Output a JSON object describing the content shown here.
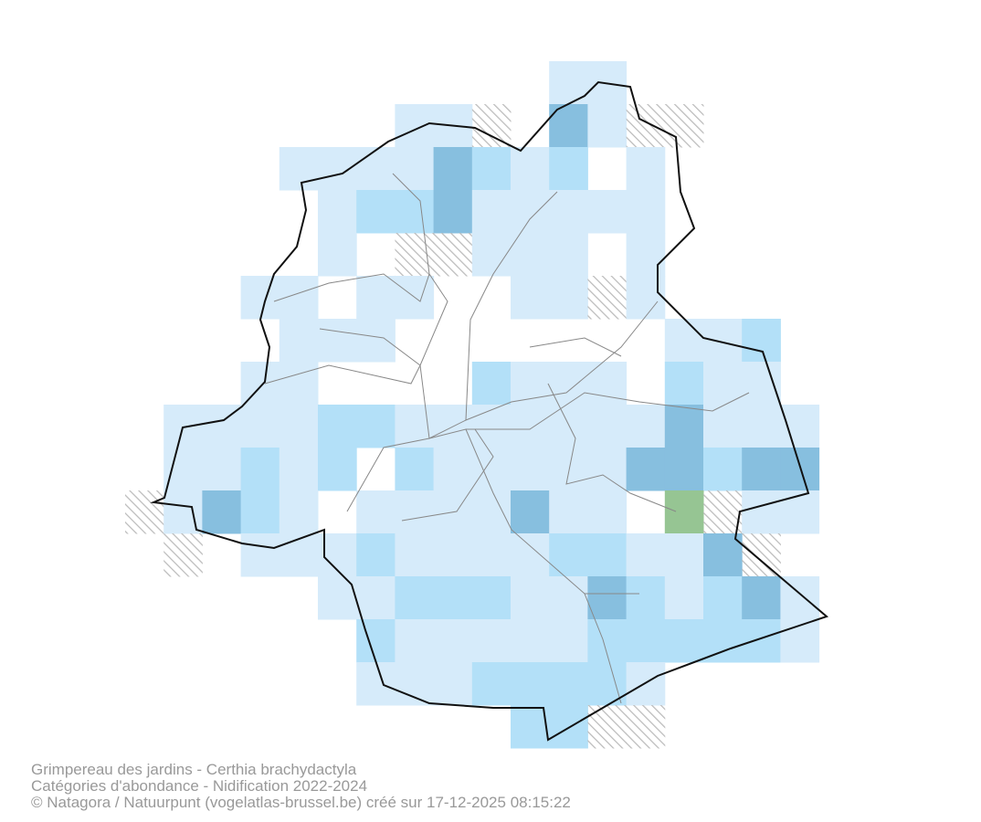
{
  "footer": {
    "lines": [
      "Grimpereau des jardins - Certhia brachydactyla",
      "Catégories d'abondance - Nidification 2022-2024",
      "© Natagora / Natuurpunt (vogelatlas-brussel.be) créé sur 17-12-2025 08:15:22"
    ]
  }
}
